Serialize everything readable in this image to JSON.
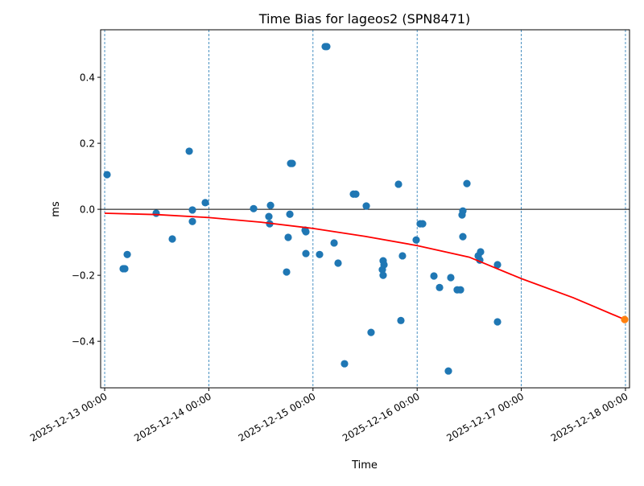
{
  "chart_data": {
    "type": "scatter",
    "title": "Time Bias for lageos2 (SPN8471)",
    "xlabel": "Time",
    "ylabel": "ms",
    "xlim": [
      "2025-12-12T23:04",
      "2025-12-18T00:56"
    ],
    "ylim": [
      -0.541,
      0.544
    ],
    "x_ticks": [
      "2025-12-13T00:00",
      "2025-12-14T00:00",
      "2025-12-15T00:00",
      "2025-12-16T00:00",
      "2025-12-17T00:00",
      "2025-12-18T00:00"
    ],
    "x_tick_labels": [
      "2025-12-13 00:00",
      "2025-12-14 00:00",
      "2025-12-15 00:00",
      "2025-12-16 00:00",
      "2025-12-17 00:00",
      "2025-12-18 00:00"
    ],
    "y_ticks": [
      0.4,
      0.2,
      0.0,
      -0.2,
      -0.4
    ],
    "y_tick_labels": [
      "0.4",
      "0.2",
      "0.0",
      "−0.2",
      "−0.4"
    ],
    "grid": "vertical dashed at day boundaries",
    "zero_line": true,
    "colors": {
      "points": "#1f77b4",
      "fit": "#ff0000",
      "prediction": "#ff7f0e",
      "day_lines": "#1f77b4",
      "zero_line": "#000000"
    },
    "series": [
      {
        "kind": "scatter",
        "color": "#1f77b4",
        "points": [
          [
            "2025-12-13T00:33",
            0.105
          ],
          [
            "2025-12-13T04:16",
            -0.18
          ],
          [
            "2025-12-13T04:38",
            -0.18
          ],
          [
            "2025-12-13T05:12",
            -0.137
          ],
          [
            "2025-12-13T11:52",
            -0.012
          ],
          [
            "2025-12-13T15:35",
            -0.09
          ],
          [
            "2025-12-13T19:29",
            0.176
          ],
          [
            "2025-12-13T20:13",
            -0.002
          ],
          [
            "2025-12-13T20:13",
            -0.037
          ],
          [
            "2025-12-13T23:11",
            0.02
          ],
          [
            "2025-12-14T10:19",
            0.002
          ],
          [
            "2025-12-14T13:50",
            -0.022
          ],
          [
            "2025-12-14T14:01",
            -0.044
          ],
          [
            "2025-12-14T14:13",
            0.012
          ],
          [
            "2025-12-14T17:55",
            -0.19
          ],
          [
            "2025-12-14T18:17",
            -0.085
          ],
          [
            "2025-12-14T18:40",
            -0.015
          ],
          [
            "2025-12-14T18:51",
            0.139
          ],
          [
            "2025-12-14T19:13",
            0.139
          ],
          [
            "2025-12-14T22:11",
            -0.063
          ],
          [
            "2025-12-14T22:22",
            -0.068
          ],
          [
            "2025-12-14T22:22",
            -0.134
          ],
          [
            "2025-12-15T01:31",
            -0.137
          ],
          [
            "2025-12-15T02:49",
            0.493
          ],
          [
            "2025-12-15T03:11",
            0.493
          ],
          [
            "2025-12-15T04:52",
            -0.102
          ],
          [
            "2025-12-15T05:47",
            -0.163
          ],
          [
            "2025-12-15T07:16",
            -0.468
          ],
          [
            "2025-12-15T09:19",
            0.046
          ],
          [
            "2025-12-15T09:52",
            0.046
          ],
          [
            "2025-12-15T12:17",
            0.01
          ],
          [
            "2025-12-15T13:23",
            -0.373
          ],
          [
            "2025-12-15T15:59",
            -0.183
          ],
          [
            "2025-12-15T16:10",
            -0.156
          ],
          [
            "2025-12-15T16:10",
            -0.2
          ],
          [
            "2025-12-15T16:22",
            -0.168
          ],
          [
            "2025-12-15T19:42",
            0.076
          ],
          [
            "2025-12-15T20:15",
            -0.337
          ],
          [
            "2025-12-15T20:37",
            -0.141
          ],
          [
            "2025-12-15T23:47",
            -0.093
          ],
          [
            "2025-12-16T00:42",
            -0.044
          ],
          [
            "2025-12-16T01:16",
            -0.044
          ],
          [
            "2025-12-16T03:52",
            -0.202
          ],
          [
            "2025-12-16T05:10",
            -0.237
          ],
          [
            "2025-12-16T07:12",
            -0.49
          ],
          [
            "2025-12-16T07:45",
            -0.207
          ],
          [
            "2025-12-16T09:14",
            -0.244
          ],
          [
            "2025-12-16T09:59",
            -0.244
          ],
          [
            "2025-12-16T10:21",
            -0.017
          ],
          [
            "2025-12-16T10:32",
            -0.005
          ],
          [
            "2025-12-16T10:32",
            -0.083
          ],
          [
            "2025-12-16T11:28",
            0.078
          ],
          [
            "2025-12-16T14:04",
            -0.141
          ],
          [
            "2025-12-16T14:26",
            -0.154
          ],
          [
            "2025-12-16T14:37",
            -0.129
          ],
          [
            "2025-12-16T18:31",
            -0.341
          ],
          [
            "2025-12-16T18:31",
            -0.168
          ]
        ]
      },
      {
        "kind": "line",
        "color": "#ff0000",
        "points": [
          [
            "2025-12-13T00:00",
            -0.012
          ],
          [
            "2025-12-13T12:00",
            -0.016
          ],
          [
            "2025-12-14T00:00",
            -0.025
          ],
          [
            "2025-12-14T12:00",
            -0.039
          ],
          [
            "2025-12-15T00:00",
            -0.058
          ],
          [
            "2025-12-15T12:00",
            -0.082
          ],
          [
            "2025-12-16T00:00",
            -0.11
          ],
          [
            "2025-12-16T12:00",
            -0.145
          ],
          [
            "2025-12-17T00:00",
            -0.21
          ],
          [
            "2025-12-17T12:00",
            -0.268
          ],
          [
            "2025-12-17T23:49",
            -0.334
          ]
        ]
      },
      {
        "kind": "scatter",
        "color": "#ff7f0e",
        "points": [
          [
            "2025-12-17T23:49",
            -0.334
          ]
        ]
      }
    ]
  }
}
